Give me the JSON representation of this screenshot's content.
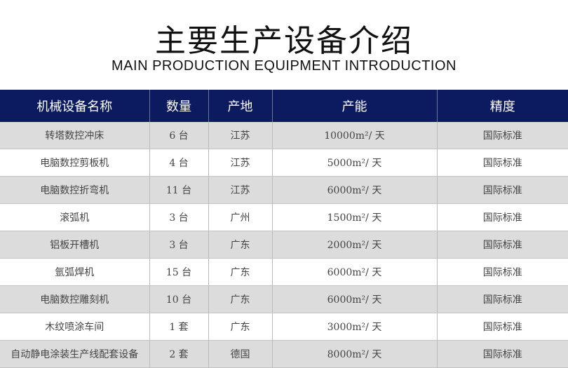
{
  "title": "主要生产设备介绍",
  "subtitle": "MAIN PRODUCTION EQUIPMENT INTRODUCTION",
  "headers": [
    "机械设备名称",
    "数量",
    "产地",
    "产能",
    "精度"
  ],
  "rows": [
    {
      "name": "转塔数控冲床",
      "qty": "6 台",
      "origin": "江苏",
      "capacity": "10000",
      "unit": "m²/ 天",
      "precision": "国际标准"
    },
    {
      "name": "电脑数控剪板机",
      "qty": "4 台",
      "origin": "江苏",
      "capacity": "5000",
      "unit": "m²/ 天",
      "precision": "国际标准"
    },
    {
      "name": "电脑数控折弯机",
      "qty": "11 台",
      "origin": "江苏",
      "capacity": "6000",
      "unit": "m²/ 天",
      "precision": "国际标准"
    },
    {
      "name": "滚弧机",
      "qty": "3 台",
      "origin": "广州",
      "capacity": "1500",
      "unit": "m²/ 天",
      "precision": "国际标准"
    },
    {
      "name": "铝板开槽机",
      "qty": "3 台",
      "origin": "广东",
      "capacity": "2000",
      "unit": "m²/ 天",
      "precision": "国际标准"
    },
    {
      "name": "氩弧焊机",
      "qty": "15 台",
      "origin": "广东",
      "capacity": "6000",
      "unit": "m²/ 天",
      "precision": "国际标准"
    },
    {
      "name": "电脑数控雕刻机",
      "qty": "10 台",
      "origin": "广东",
      "capacity": "6000",
      "unit": "m²/ 天",
      "precision": "国际标准"
    },
    {
      "name": "木纹喷涂车间",
      "qty": "1 套",
      "origin": "广东",
      "capacity": "3000",
      "unit": "m²/ 天",
      "precision": "国际标准"
    },
    {
      "name": "自动静电涂装生产线配套设备",
      "qty": "2 套",
      "origin": "德国",
      "capacity": "8000",
      "unit": "m²/ 天",
      "precision": "国际标准"
    }
  ],
  "colors": {
    "header_bg": "#0c1b5f",
    "row_alt": "#dcdcdc"
  }
}
